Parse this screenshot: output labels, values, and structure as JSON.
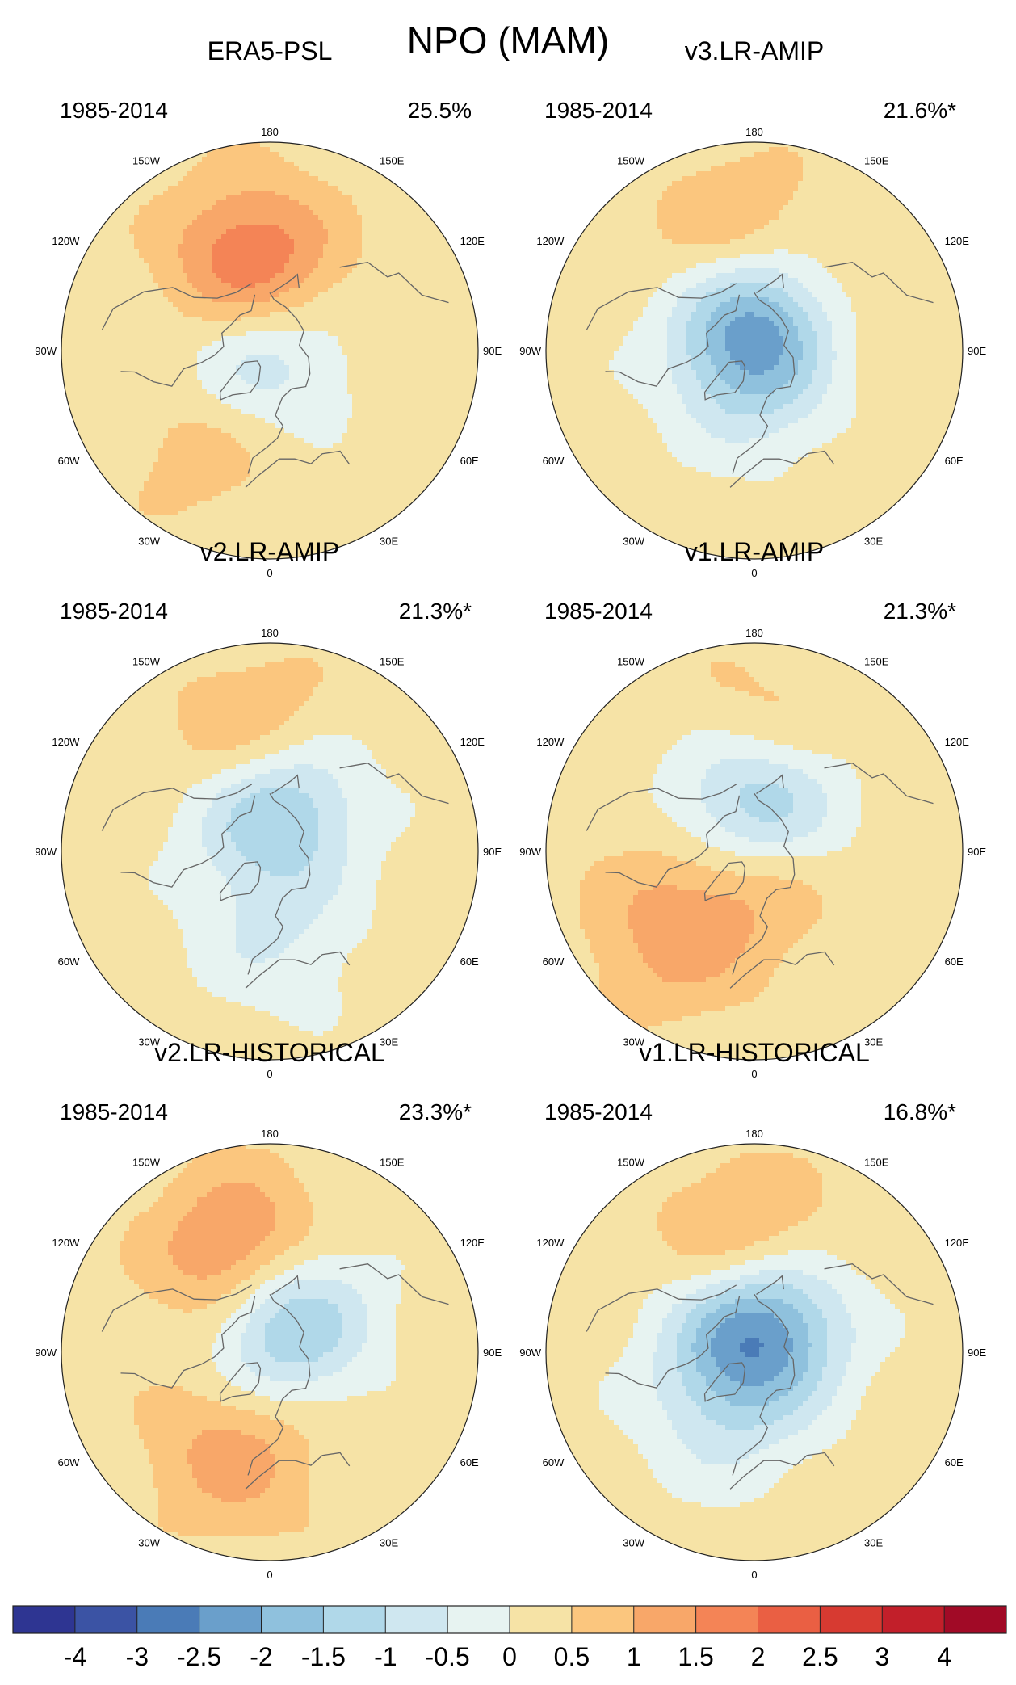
{
  "title": "NPO (MAM)",
  "panels": [
    {
      "title": "ERA5-PSL",
      "period": "1985-2014",
      "variance": "25.5%"
    },
    {
      "title": "v3.LR-AMIP",
      "period": "1985-2014",
      "variance": "21.6%*"
    },
    {
      "title": "v2.LR-AMIP",
      "period": "1985-2014",
      "variance": "21.3%*"
    },
    {
      "title": "v1.LR-AMIP",
      "period": "1985-2014",
      "variance": "21.3%*"
    },
    {
      "title": "v2.LR-HISTORICAL",
      "period": "1985-2014",
      "variance": "23.3%*"
    },
    {
      "title": "v1.LR-HISTORICAL",
      "period": "1985-2014",
      "variance": "16.8%*"
    }
  ],
  "longitude_labels": [
    "180",
    "150E",
    "120E",
    "90E",
    "60E",
    "30E",
    "0",
    "30W",
    "60W",
    "90W",
    "120W",
    "150W"
  ],
  "colorbar": {
    "labels": [
      "-4",
      "-3",
      "-2.5",
      "-2",
      "-1.5",
      "-1",
      "-0.5",
      "0",
      "0.5",
      "1",
      "1.5",
      "2",
      "2.5",
      "3",
      "4"
    ],
    "colors": [
      "#2e3592",
      "#3b53a4",
      "#4a7bb7",
      "#6a9fcb",
      "#8fc1dd",
      "#b0d8e9",
      "#cfe7f0",
      "#e7f3f1",
      "#f6e3a6",
      "#fbc67e",
      "#f8a769",
      "#f48456",
      "#ea5f43",
      "#d73a31",
      "#c21f2a",
      "#a10a26"
    ]
  },
  "chart_data": {
    "type": "heatmap",
    "projection": "north polar stereographic",
    "field": "NPO pattern, sea-level pressure anomaly",
    "colorbar_levels": [
      -4,
      -3,
      -2.5,
      -2,
      -1.5,
      -1,
      -0.5,
      0,
      0.5,
      1,
      1.5,
      2,
      2.5,
      3,
      4
    ],
    "panels": [
      {
        "name": "ERA5-PSL",
        "variance_explained_pct": 25.5,
        "significant": false,
        "features": [
          {
            "sign": "positive",
            "lon": -168,
            "lat": 55,
            "peak": 2.2
          },
          {
            "sign": "negative",
            "lon": -120,
            "lat": 85,
            "peak": -1.6
          },
          {
            "sign": "positive",
            "lon": -35,
            "lat": 42,
            "peak": 0.6
          }
        ]
      },
      {
        "name": "v3.LR-AMIP",
        "variance_explained_pct": 21.6,
        "significant": true,
        "features": [
          {
            "sign": "positive",
            "lon": -172,
            "lat": 50,
            "peak": 1.9
          },
          {
            "sign": "negative",
            "lon": 178,
            "lat": 70,
            "peak": -3.1
          },
          {
            "sign": "negative",
            "lon": 10,
            "lat": 82,
            "peak": -1.2
          },
          {
            "sign": "positive",
            "lon": 120,
            "lat": 60,
            "peak": 0.7
          }
        ]
      },
      {
        "name": "v2.LR-AMIP",
        "variance_explained_pct": 21.3,
        "significant": true,
        "features": [
          {
            "sign": "positive",
            "lon": -172,
            "lat": 48,
            "peak": 1.6
          },
          {
            "sign": "negative",
            "lon": 175,
            "lat": 72,
            "peak": -3.1
          },
          {
            "sign": "positive",
            "lon": 40,
            "lat": 85,
            "peak": 1.0
          },
          {
            "sign": "negative",
            "lon": 5,
            "lat": 60,
            "peak": -1.0
          }
        ]
      },
      {
        "name": "v1.LR-AMIP",
        "variance_explained_pct": 21.3,
        "significant": true,
        "features": [
          {
            "sign": "positive",
            "lon": 175,
            "lat": 48,
            "peak": 1.5
          },
          {
            "sign": "negative",
            "lon": 175,
            "lat": 68,
            "peak": -3.2
          },
          {
            "sign": "positive",
            "lon": 10,
            "lat": 85,
            "peak": 1.3
          },
          {
            "sign": "positive",
            "lon": -45,
            "lat": 40,
            "peak": 1.0
          }
        ]
      },
      {
        "name": "v2.LR-HISTORICAL",
        "variance_explained_pct": 23.3,
        "significant": true,
        "features": [
          {
            "sign": "positive",
            "lon": -165,
            "lat": 52,
            "peak": 2.6
          },
          {
            "sign": "negative",
            "lon": 170,
            "lat": 72,
            "peak": -3.0
          },
          {
            "sign": "positive",
            "lon": -20,
            "lat": 45,
            "peak": 1.1
          }
        ]
      },
      {
        "name": "v1.LR-HISTORICAL",
        "variance_explained_pct": 16.8,
        "significant": true,
        "features": [
          {
            "sign": "positive",
            "lon": -175,
            "lat": 50,
            "peak": 1.8
          },
          {
            "sign": "negative",
            "lon": 175,
            "lat": 76,
            "peak": -3.3
          },
          {
            "sign": "negative",
            "lon": -30,
            "lat": 62,
            "peak": -0.8
          }
        ]
      }
    ]
  }
}
